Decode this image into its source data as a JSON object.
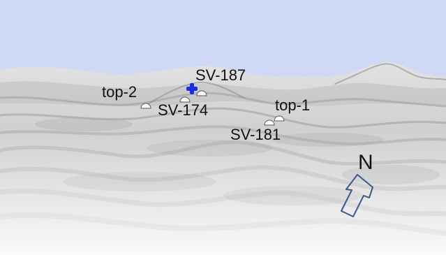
{
  "colors": {
    "sky": "#cfd8f5",
    "terrain_light": "#f7f7f7",
    "terrain_mid": "#d2d2d2",
    "terrain_dark": "#a9a9a9",
    "marker_fill": "#ffffff",
    "marker_stroke": "#555555",
    "highlight_marker": "#1a2fe0",
    "arrow_stroke": "#3a5a8c"
  },
  "icons": {
    "site_marker": "half-dome-marker-icon",
    "highlight_marker": "blue-cross-marker-icon",
    "north_arrow": "north-arrow-icon"
  },
  "labels": {
    "sv187": "SV-187",
    "sv174": "SV-174",
    "sv181": "SV-181",
    "top1": "top-1",
    "top2": "top-2"
  },
  "compass": {
    "north": "N"
  }
}
